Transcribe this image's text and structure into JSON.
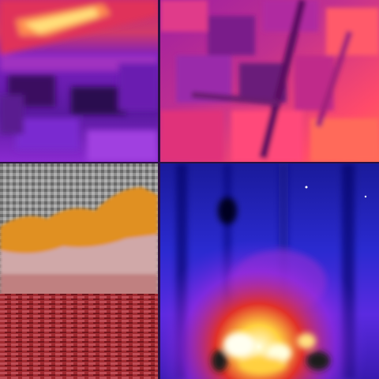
{
  "tiles": [
    {
      "id": "top-left",
      "palette": "thermal-magenta-purple",
      "colors": [
        "#6a1fb0",
        "#9a2ad0",
        "#ff3a6a",
        "#ffe070",
        "#3a0a70"
      ]
    },
    {
      "id": "top-right",
      "palette": "thermal-magenta-pink",
      "colors": [
        "#e0307a",
        "#b020a0",
        "#ff6a5a",
        "#7a1a8a",
        "#ff4a8a"
      ]
    },
    {
      "id": "bottom-left",
      "palette": "gray-orange-red",
      "colors": [
        "#8a8a8a",
        "#e09020",
        "#d0a0a0",
        "#a02a30",
        "#3a0a0a"
      ]
    },
    {
      "id": "bottom-right",
      "palette": "thermal-blue-red-white",
      "colors": [
        "#1a1ab0",
        "#3a2aff",
        "#e0302a",
        "#ffffe0",
        "#0a0a40"
      ]
    }
  ]
}
